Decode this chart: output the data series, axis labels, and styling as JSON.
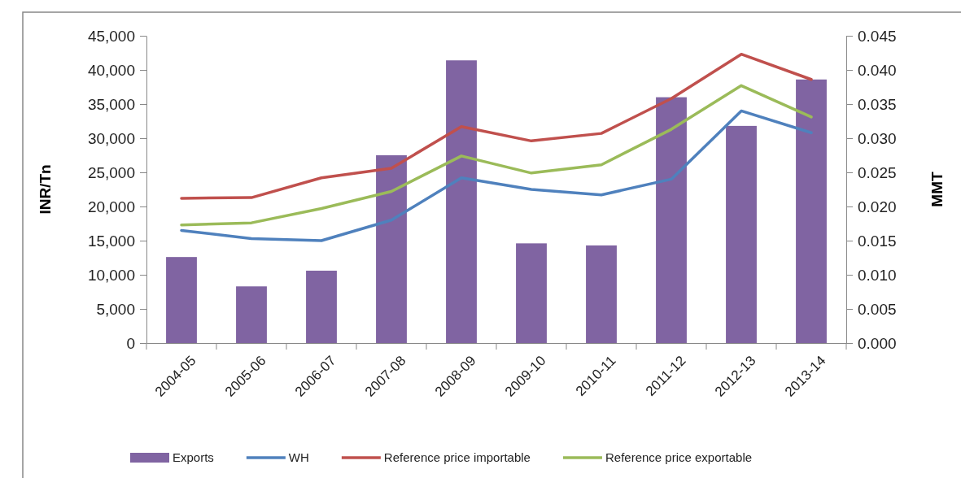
{
  "chart_data": {
    "type": "bar",
    "categories": [
      "2004-05",
      "2005-06",
      "2006-07",
      "2007-08",
      "2008-09",
      "2009-10",
      "2010-11",
      "2011-12",
      "2012-13",
      "2013-14"
    ],
    "ylabel": "INR/Tn",
    "y2label": "MMT",
    "ylim": [
      0,
      45000
    ],
    "yticks": [
      {
        "value": 0,
        "label": "0"
      },
      {
        "value": 5000,
        "label": "5,000"
      },
      {
        "value": 10000,
        "label": "10,000"
      },
      {
        "value": 15000,
        "label": "15,000"
      },
      {
        "value": 20000,
        "label": "20,000"
      },
      {
        "value": 25000,
        "label": "25,000"
      },
      {
        "value": 30000,
        "label": "30,000"
      },
      {
        "value": 35000,
        "label": "35,000"
      },
      {
        "value": 40000,
        "label": "40,000"
      },
      {
        "value": 45000,
        "label": "45,000"
      }
    ],
    "y2lim": [
      0,
      0.045
    ],
    "y2ticks": [
      {
        "value": 0,
        "label": "0.000"
      },
      {
        "value": 0.005,
        "label": "0.005"
      },
      {
        "value": 0.01,
        "label": "0.010"
      },
      {
        "value": 0.015,
        "label": "0.015"
      },
      {
        "value": 0.02,
        "label": "0.020"
      },
      {
        "value": 0.025,
        "label": "0.025"
      },
      {
        "value": 0.03,
        "label": "0.030"
      },
      {
        "value": 0.035,
        "label": "0.035"
      },
      {
        "value": 0.04,
        "label": "0.040"
      },
      {
        "value": 0.045,
        "label": "0.045"
      }
    ],
    "grid": false,
    "legend": "bottom",
    "series": [
      {
        "name": "Exports",
        "axis": "y2",
        "color": "#8064a2",
        "values": [
          0.0126,
          0.0083,
          0.0106,
          0.0275,
          0.0414,
          0.0146,
          0.0143,
          0.036,
          0.0318,
          0.0386
        ]
      },
      {
        "name": "WH",
        "type": "line",
        "color": "#4f81bd",
        "values": [
          16500,
          15300,
          15000,
          18000,
          24200,
          22500,
          21700,
          24000,
          34000,
          30800
        ]
      },
      {
        "name": "Reference price importable",
        "type": "line",
        "color": "#c0504d",
        "values": [
          21200,
          21300,
          24200,
          25600,
          31700,
          29600,
          30700,
          35800,
          42300,
          38600
        ]
      },
      {
        "name": "Reference price exportable",
        "type": "line",
        "color": "#9bbb59",
        "values": [
          17300,
          17600,
          19700,
          22200,
          27400,
          24900,
          26100,
          31300,
          37700,
          33100
        ]
      }
    ]
  }
}
